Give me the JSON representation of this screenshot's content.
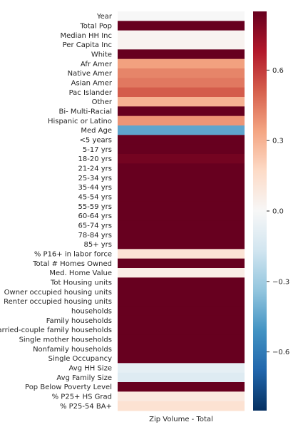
{
  "chart_data": {
    "type": "heatmap",
    "x_categories": [
      "Zip Volume - Total"
    ],
    "row_labels": [
      "Year",
      "Total Pop",
      "Median HH Inc",
      "Per Capita Inc",
      "White",
      "Afr Amer",
      "Native Amer",
      "Asian Amer",
      "Pac Islander",
      "Other",
      "Bi- Multi-Racial",
      "Hispanic or Latino",
      "Med Age",
      "<5 years",
      "5-17 yrs",
      "18-20 yrs",
      "21-24 yrs",
      "25-34 yrs",
      "35-44 yrs",
      "45-54 yrs",
      "55-59 yrs",
      "60-64 yrs",
      "65-74 yrs",
      "78-84 yrs",
      "85+ yrs",
      "% P16+ in labor force",
      "Total # Homes Owned",
      "Med. Home Value",
      "Tot Housing units",
      "Owner occupied housing units",
      "Renter occupied housing units",
      "households",
      "Family households",
      "Married-couple family households",
      "Single mother households",
      "Nonfamily households",
      "Single Occupancy",
      "Avg HH Size",
      "Avg Family Size",
      "Pop Below Poverty Level",
      "% P25+ HS Grad",
      "% P25-54 BA+"
    ],
    "values": [
      0.0,
      0.96,
      0.02,
      0.03,
      0.95,
      0.35,
      0.42,
      0.45,
      0.52,
      0.3,
      0.85,
      0.38,
      -0.45,
      0.93,
      0.95,
      0.82,
      0.86,
      0.94,
      0.95,
      0.95,
      0.94,
      0.93,
      0.92,
      0.91,
      0.88,
      0.12,
      0.93,
      0.06,
      0.96,
      0.92,
      0.93,
      0.96,
      0.94,
      0.92,
      0.88,
      0.93,
      0.94,
      -0.08,
      -0.11,
      0.96,
      0.08,
      0.13
    ],
    "colormap": "RdBu_r",
    "vmin": -0.85,
    "vmax": 0.85,
    "colorbar_ticks": [
      0.6,
      0.3,
      0.0,
      -0.3,
      -0.6
    ],
    "colorbar_tick_labels": [
      "0.6",
      "0.3",
      "0.0",
      "−0.3",
      "−0.6"
    ],
    "title": "",
    "xlabel": "",
    "ylabel": "",
    "grid": false
  }
}
